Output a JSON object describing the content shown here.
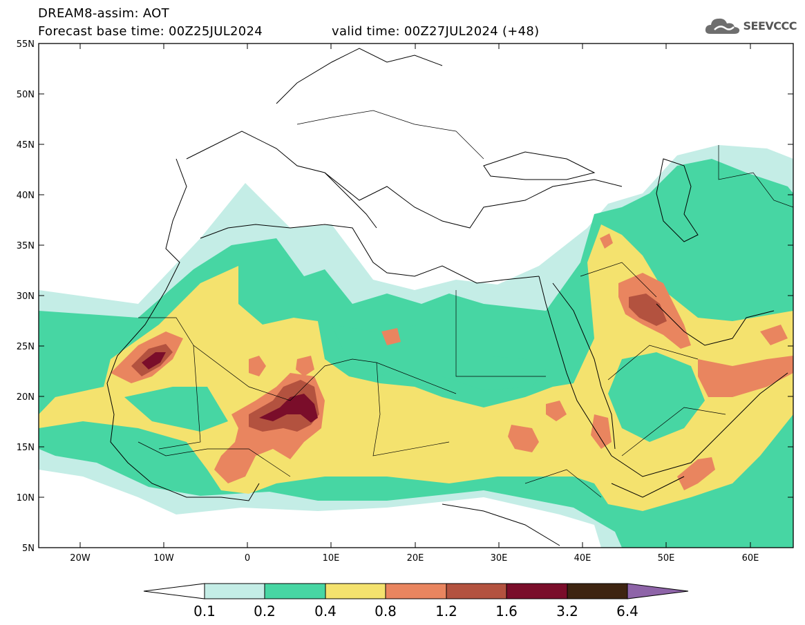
{
  "title": {
    "line1": "DREAM8-assim: AOT",
    "base": "Forecast base time: 00Z25JUL2024",
    "valid": "valid time: 00Z27JUL2024 (+48)"
  },
  "logo": {
    "text": "SEEVCCC",
    "icon": "cloud-icon"
  },
  "axes": {
    "lat_labels": [
      "55N",
      "50N",
      "45N",
      "40N",
      "35N",
      "30N",
      "25N",
      "20N",
      "15N",
      "10N",
      "5N"
    ],
    "lon_labels": [
      "20W",
      "10W",
      "0",
      "10E",
      "20E",
      "30E",
      "40E",
      "50E",
      "60E"
    ],
    "lon_range": [
      -25,
      65
    ],
    "lat_range": [
      5,
      55
    ]
  },
  "colorbar": {
    "labels": [
      "0.1",
      "0.2",
      "0.4",
      "0.8",
      "1.2",
      "1.6",
      "3.2",
      "6.4"
    ],
    "colors": [
      "#ffffff",
      "#c4ede6",
      "#47d6a3",
      "#f4e26e",
      "#e9855f",
      "#b3523f",
      "#7a0d2a",
      "#3e2411",
      "#8e64a8"
    ]
  }
}
